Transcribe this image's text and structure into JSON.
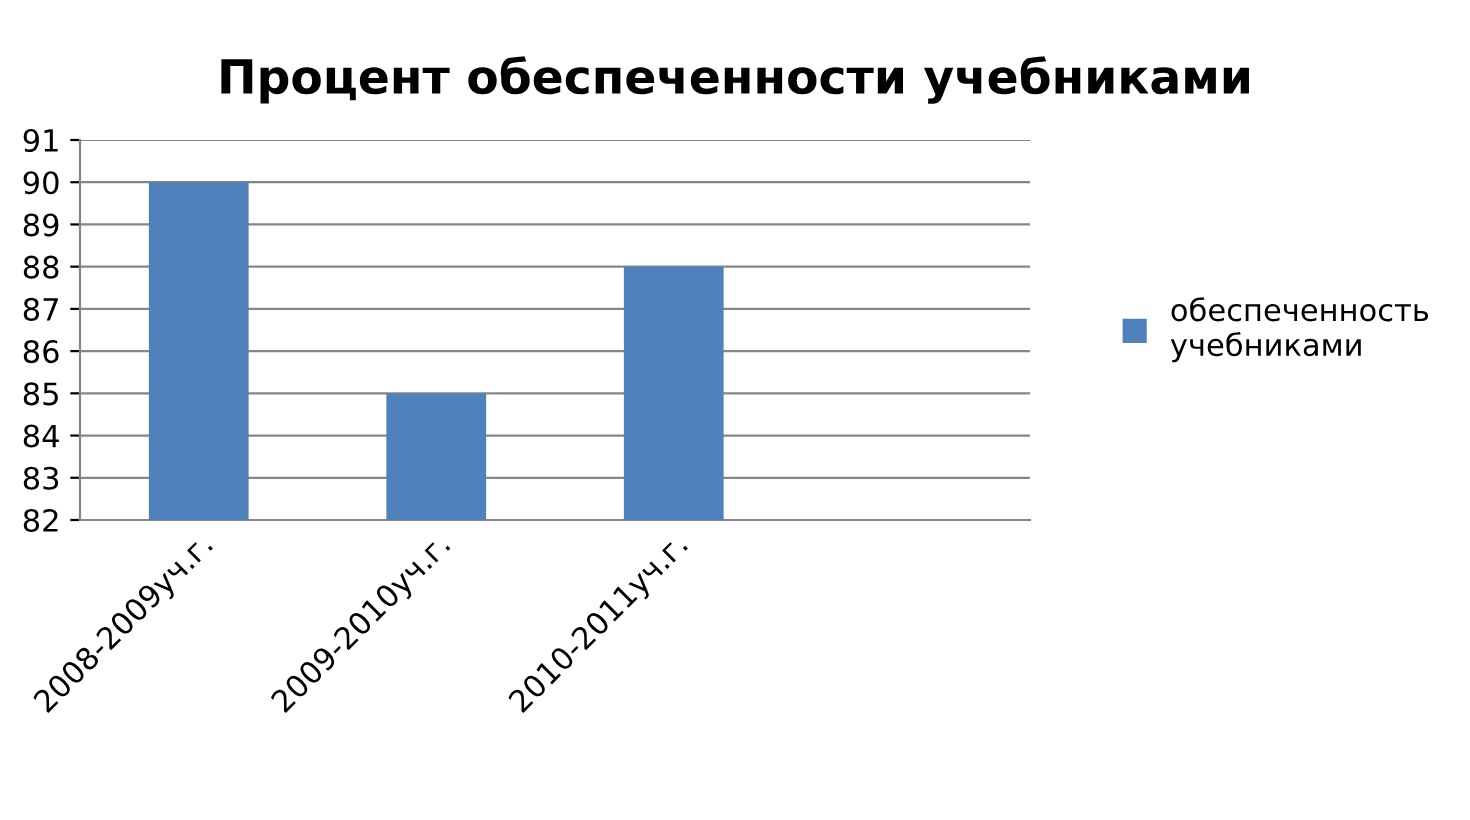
{
  "chart_data": {
    "type": "bar",
    "title": "Процент обеспеченности учебниками",
    "categories": [
      "2008-2009уч.г.",
      "2009-2010уч.г.",
      "2010-2011уч.г.",
      null
    ],
    "series": [
      {
        "name": "обеспеченность\nучебниками",
        "color": "#4f81bd",
        "values": [
          90,
          85,
          88,
          null
        ]
      }
    ],
    "ylim": [
      82,
      91
    ],
    "yticks": [
      82,
      83,
      84,
      85,
      86,
      87,
      88,
      89,
      90,
      91
    ],
    "grid": "y",
    "legend": "right"
  }
}
